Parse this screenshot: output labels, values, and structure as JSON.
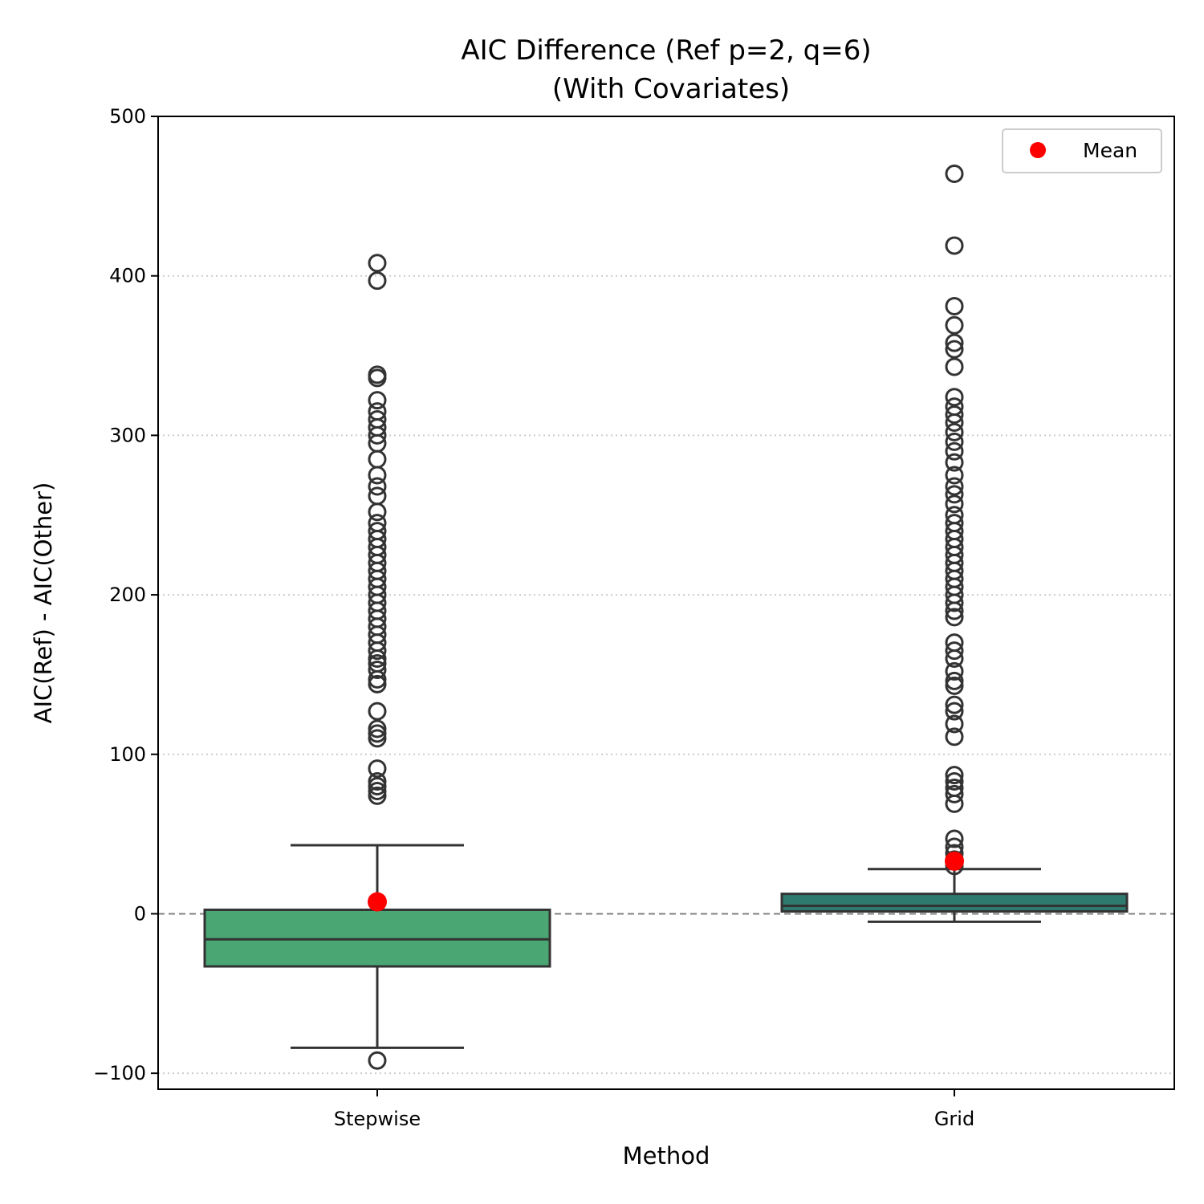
{
  "chart_data": {
    "type": "box",
    "title_lines": [
      "AIC Difference (Ref p=2, q=6)",
      "(With Covariates)"
    ],
    "xlabel": "Method",
    "ylabel": "AIC(Ref) - AIC(Other)",
    "ylim": [
      -110,
      500
    ],
    "yticks": [
      -100,
      0,
      100,
      200,
      300,
      400,
      500
    ],
    "ytick_labels": [
      "−100",
      "0",
      "100",
      "200",
      "300",
      "400",
      "500"
    ],
    "grid": "horizontal dotted",
    "reference_line": 0,
    "categories": [
      "Stepwise",
      "Grid"
    ],
    "legend": {
      "label": "Mean",
      "placement": "top-right"
    },
    "boxes": [
      {
        "category": "Stepwise",
        "color": "#4aa673",
        "q1": -33,
        "median": -16,
        "q3": 2.5,
        "whisker_low": -84,
        "whisker_high": 43,
        "mean": 7.5,
        "outliers": [
          -92,
          74,
          77,
          80,
          83,
          91,
          110,
          113,
          116,
          127,
          144,
          147,
          153,
          157,
          160,
          165,
          170,
          175,
          180,
          185,
          190,
          195,
          200,
          205,
          210,
          215,
          220,
          225,
          230,
          235,
          240,
          245,
          252,
          262,
          268,
          275,
          285,
          295,
          300,
          305,
          310,
          315,
          322,
          336,
          338,
          397,
          408
        ]
      },
      {
        "category": "Grid",
        "color": "#2f7a6f",
        "q1": 1.5,
        "median": 5,
        "q3": 12.5,
        "whisker_low": -5,
        "whisker_high": 28,
        "mean": 33,
        "outliers": [
          30,
          34,
          38,
          42,
          47,
          69,
          75,
          79,
          83,
          87,
          111,
          119,
          127,
          131,
          143,
          146,
          152,
          160,
          165,
          170,
          186,
          190,
          195,
          200,
          205,
          210,
          215,
          220,
          225,
          230,
          235,
          240,
          245,
          250,
          257,
          263,
          268,
          275,
          283,
          290,
          296,
          302,
          308,
          313,
          318,
          324,
          343,
          354,
          358,
          369,
          381,
          419,
          464
        ]
      }
    ],
    "colors": {
      "mean_marker": "#ff0000",
      "box_edge": "#333333",
      "grid": "#cccccc",
      "reference_line": "#808080"
    }
  }
}
